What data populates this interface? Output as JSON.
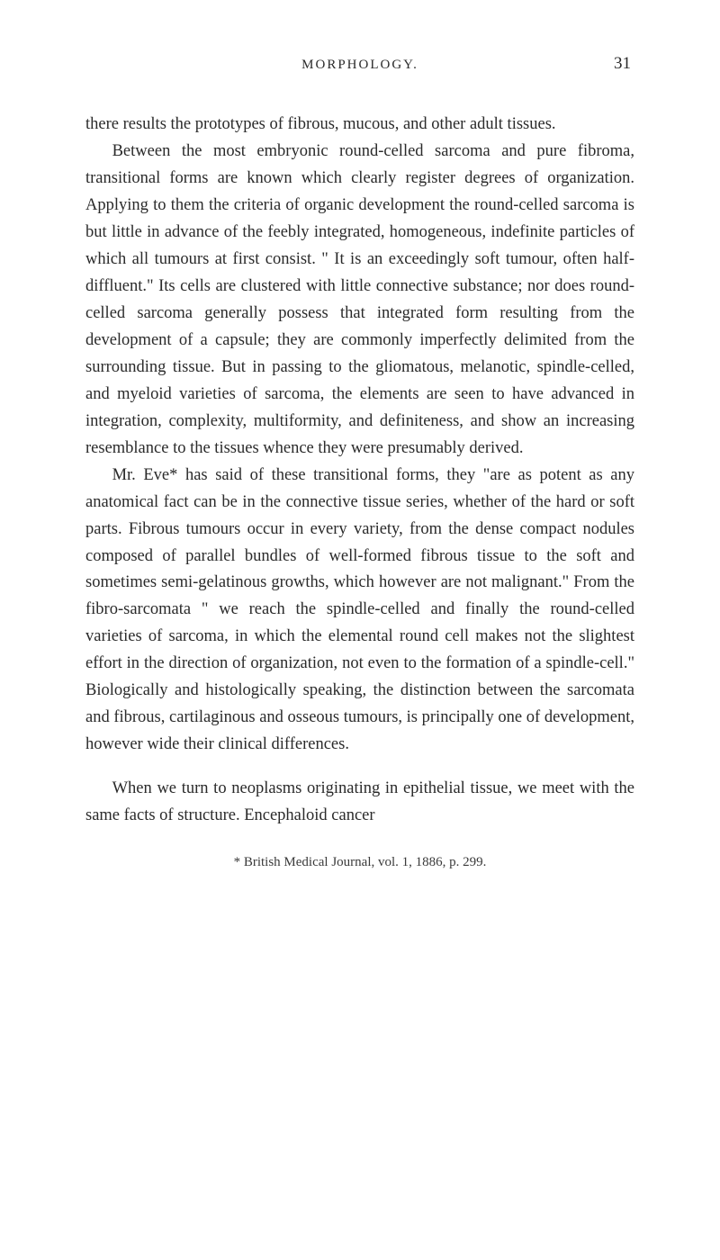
{
  "header": {
    "running_head": "MORPHOLOGY.",
    "page_number": "31"
  },
  "paragraphs": {
    "p1": "there results the prototypes of fibrous, mucous, and other adult tissues.",
    "p2": "Between the most embryonic round-celled sarcoma and pure fibroma, transitional forms are known which clearly register degrees of organization. Applying to them the criteria of organic development the round-celled sarcoma is but little in advance of the feebly integrated, homogeneous, indefinite particles of which all tumours at first consist. \" It is an exceedingly soft tumour, often half-diffluent.\" Its cells are clustered with little connective substance; nor does round-celled sarcoma generally possess that integrated form resulting from the development of a capsule; they are commonly imperfectly delimited from the surrounding tissue. But in passing to the gliomatous, melanotic, spindle-celled, and myeloid varieties of sarcoma, the elements are seen to have advanced in integration, complexity, multiformity, and definiteness, and show an increasing resemblance to the tissues whence they were presumably derived.",
    "p3": "Mr. Eve* has said of these transitional forms, they \"are as potent as any anatomical fact can be in the connective tissue series, whether of the hard or soft parts. Fibrous tumours occur in every variety, from the dense compact nodules composed of parallel bundles of well-formed fibrous tissue to the soft and sometimes semi-gelatinous growths, which however are not malignant.\" From the fibro-sarcomata \" we reach the spindle-celled and finally the round-celled varieties of sarcoma, in which the elemental round cell makes not the slightest effort in the direction of organization, not even to the formation of a spindle-cell.\" Biologically and histologically speaking, the distinction between the sarcomata and fibrous, cartilaginous and osseous tumours, is principally one of development, however wide their clinical differences.",
    "p4": "When we turn to neoplasms originating in epithelial tissue, we meet with the same facts of structure. Encephaloid cancer"
  },
  "footnote": "* British Medical Journal, vol. 1, 1886, p. 299."
}
